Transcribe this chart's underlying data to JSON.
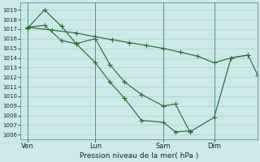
{
  "background_color": "#cce8e8",
  "grid_color": "#aad0d0",
  "line_color": "#2a6e3a",
  "xlabel": "Pression niveau de la mer( hPa )",
  "ylim_min": 1005.5,
  "ylim_max": 1019.8,
  "yticks": [
    1006,
    1007,
    1008,
    1009,
    1010,
    1011,
    1012,
    1013,
    1014,
    1015,
    1016,
    1017,
    1018,
    1019
  ],
  "xtick_labels": [
    "Ven",
    "Lun",
    "Sam",
    "Dim"
  ],
  "xtick_positions": [
    0,
    28,
    56,
    77
  ],
  "vline_positions": [
    0,
    28,
    56,
    77
  ],
  "xlim_min": -3,
  "xlim_max": 95,
  "series_straight_x": [
    0,
    10,
    20,
    28,
    35,
    42,
    49,
    56,
    63,
    70,
    77,
    84,
    91,
    95
  ],
  "series_straight_y": [
    1017.2,
    1016.9,
    1016.6,
    1016.2,
    1015.9,
    1015.6,
    1015.3,
    1015.0,
    1014.6,
    1014.2,
    1013.5,
    1014.0,
    1014.3,
    1012.2
  ],
  "series_zigzag1_x": [
    0,
    7,
    14,
    20,
    28,
    34,
    40,
    47,
    56,
    61,
    67,
    77,
    84,
    91
  ],
  "series_zigzag1_y": [
    1017.1,
    1019.0,
    1017.3,
    1015.5,
    1016.0,
    1013.3,
    1011.5,
    1010.2,
    1009.0,
    1009.2,
    1006.3,
    1007.8,
    1014.0,
    1014.3
  ],
  "series_zigzag2_x": [
    0,
    7,
    14,
    20,
    28,
    34,
    40,
    47,
    56,
    61,
    67
  ],
  "series_zigzag2_y": [
    1017.2,
    1017.4,
    1015.8,
    1015.5,
    1013.5,
    1011.5,
    1009.8,
    1007.5,
    1007.3,
    1006.3,
    1006.4
  ]
}
